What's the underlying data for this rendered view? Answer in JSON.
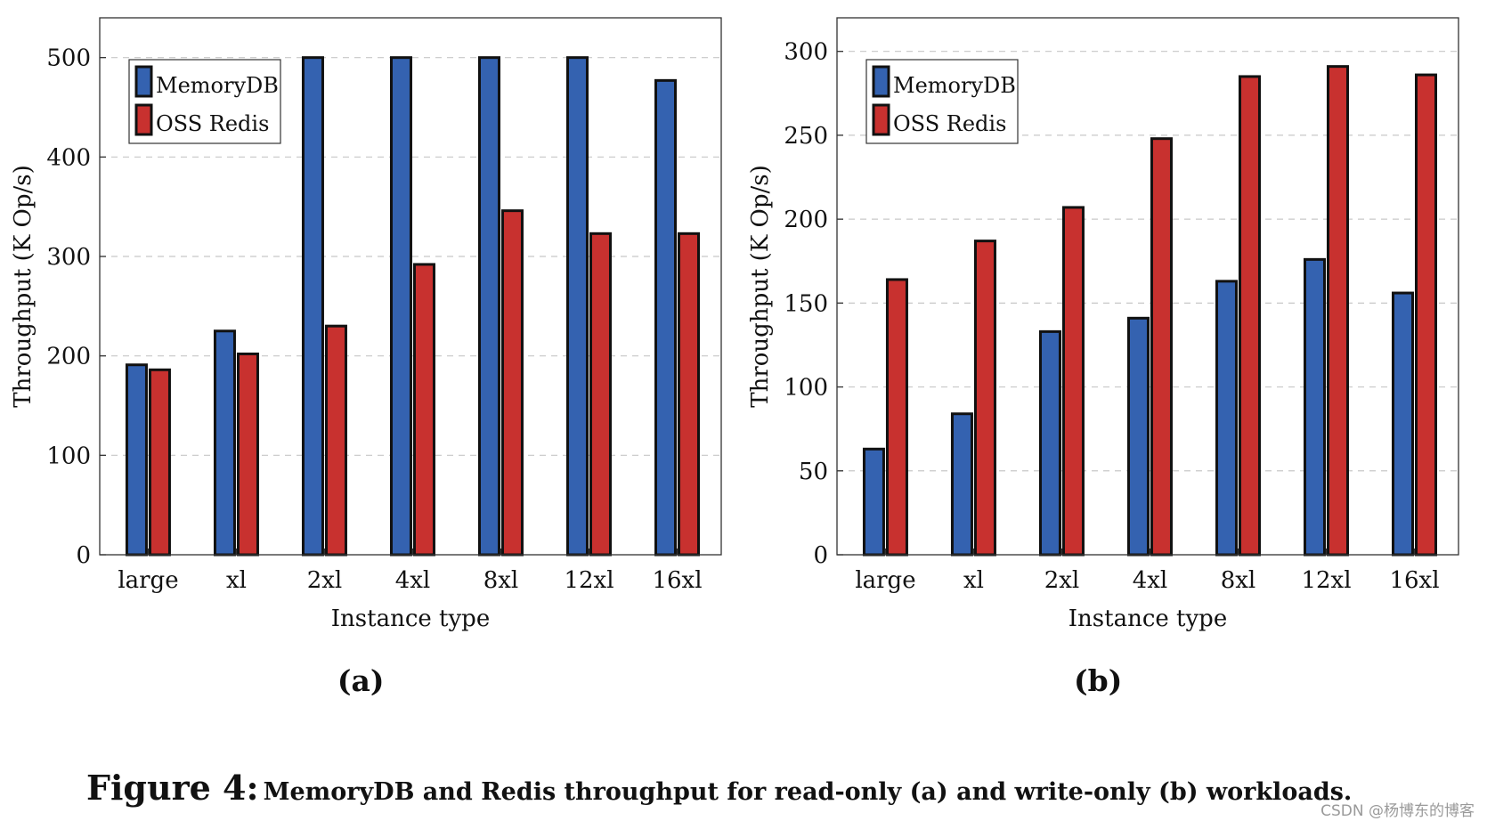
{
  "chart_data": [
    {
      "type": "bar",
      "panel_label": "(a)",
      "xlabel": "Instance type",
      "ylabel": "Throughput (K Op/s)",
      "categories": [
        "large",
        "xl",
        "2xl",
        "4xl",
        "8xl",
        "12xl",
        "16xl"
      ],
      "ylim": [
        0,
        540
      ],
      "yticks": [
        0,
        100,
        200,
        300,
        400,
        500
      ],
      "grid": true,
      "legend_position": "top-left",
      "series": [
        {
          "name": "MemoryDB",
          "color": "#3462b0",
          "values": [
            191,
            225,
            500,
            500,
            500,
            500,
            477
          ]
        },
        {
          "name": "OSS Redis",
          "color": "#c8312f",
          "values": [
            186,
            202,
            230,
            292,
            346,
            323,
            323
          ]
        }
      ]
    },
    {
      "type": "bar",
      "panel_label": "(b)",
      "xlabel": "Instance type",
      "ylabel": "Throughput (K Op/s)",
      "categories": [
        "large",
        "xl",
        "2xl",
        "4xl",
        "8xl",
        "12xl",
        "16xl"
      ],
      "ylim": [
        0,
        320
      ],
      "yticks": [
        0,
        50,
        100,
        150,
        200,
        250,
        300
      ],
      "grid": true,
      "legend_position": "top-left",
      "series": [
        {
          "name": "MemoryDB",
          "color": "#3462b0",
          "values": [
            63,
            84,
            133,
            141,
            163,
            176,
            156
          ]
        },
        {
          "name": "OSS Redis",
          "color": "#c8312f",
          "values": [
            164,
            187,
            207,
            248,
            285,
            291,
            286
          ]
        }
      ]
    }
  ],
  "caption": {
    "lead": "Figure 4:",
    "text": "MemoryDB and Redis throughput for read-only (a) and write-only (b) workloads."
  },
  "watermark": "CSDN @杨博东的博客"
}
